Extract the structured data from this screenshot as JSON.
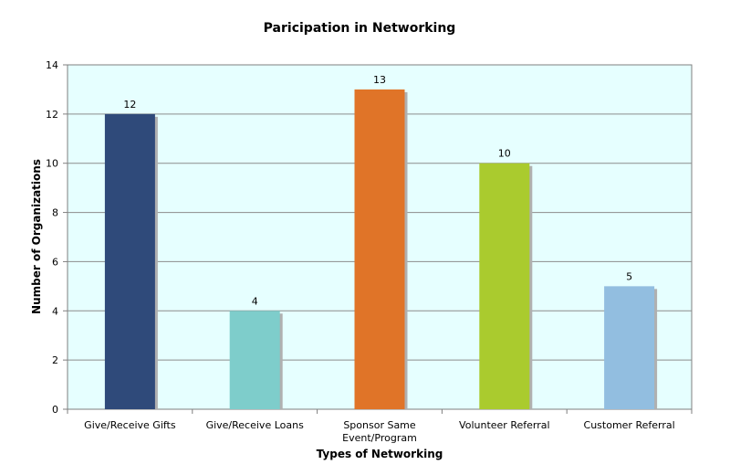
{
  "chart_data": {
    "type": "bar",
    "title": "Paricipation in Networking",
    "xlabel": "Types of Networking",
    "ylabel": "Number of Organizations",
    "categories": [
      [
        "Give/Receive Gifts"
      ],
      [
        "Give/Receive Loans"
      ],
      [
        "Sponsor Same",
        "Event/Program"
      ],
      [
        "Volunteer Referral"
      ],
      [
        "Customer Referral"
      ]
    ],
    "values": [
      12,
      4,
      13,
      10,
      5
    ],
    "bar_colors": [
      "#2F4A7A",
      "#7ECDCB",
      "#E07428",
      "#AACB2E",
      "#92BEE0"
    ],
    "ylim": [
      0,
      14
    ],
    "yticks": [
      0,
      2,
      4,
      6,
      8,
      10,
      12,
      14
    ],
    "grid": true,
    "plot_background": "#E6FFFF",
    "legend": "none"
  }
}
